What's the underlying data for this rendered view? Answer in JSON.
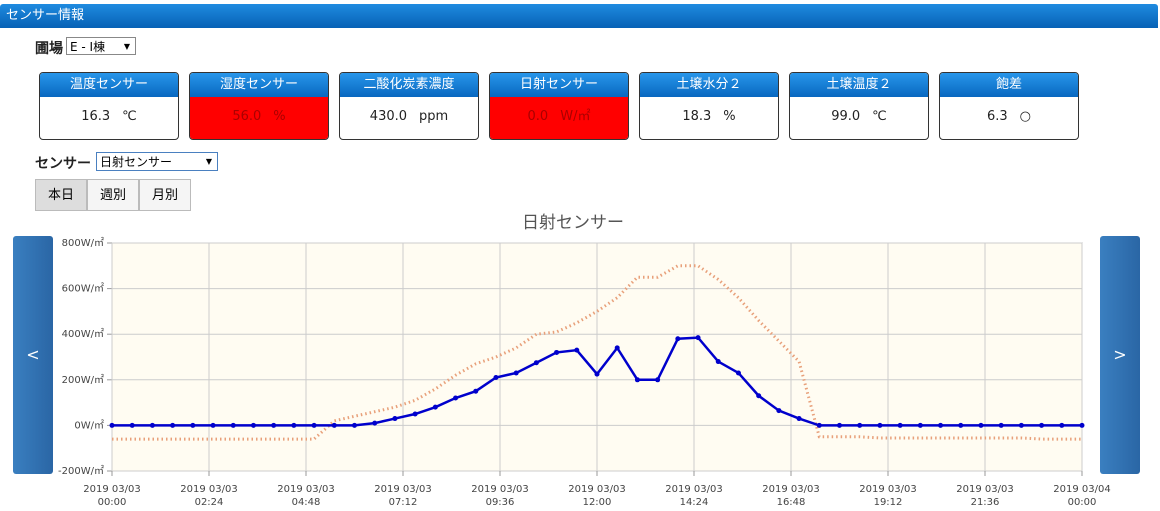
{
  "header": {
    "title": "センサー情報"
  },
  "farm": {
    "label": "圃場",
    "selected": "E - I棟"
  },
  "cards": [
    {
      "name": "温度センサー",
      "value": "16.3",
      "unit": "℃",
      "alert": false
    },
    {
      "name": "湿度センサー",
      "value": "56.0",
      "unit": "%",
      "alert": true
    },
    {
      "name": "二酸化炭素濃度",
      "value": "430.0",
      "unit": "ppm",
      "alert": false
    },
    {
      "name": "日射センサー",
      "value": "0.0",
      "unit": "W/㎡",
      "alert": true
    },
    {
      "name": "土壌水分２",
      "value": "18.3",
      "unit": "%",
      "alert": false
    },
    {
      "name": "土壌温度２",
      "value": "99.0",
      "unit": "℃",
      "alert": false
    },
    {
      "name": "飽差",
      "value": "6.3",
      "unit": "○",
      "alert": false
    }
  ],
  "sensor": {
    "label": "センサー",
    "selected": "日射センサー"
  },
  "range_buttons": [
    "本日",
    "週別",
    "月別"
  ],
  "nav": {
    "prev": "<",
    "next": ">"
  },
  "chart_data": {
    "type": "line",
    "title": "日射センサー",
    "x": [
      0,
      0.5,
      1,
      1.5,
      2,
      2.5,
      3,
      3.5,
      4,
      4.5,
      5,
      5.5,
      6,
      6.5,
      7,
      7.5,
      8,
      8.5,
      9,
      9.5,
      10,
      10.5,
      11,
      11.5,
      12,
      12.5,
      13,
      13.5,
      14,
      14.5,
      15,
      15.5,
      16,
      16.5,
      17,
      17.5,
      18,
      18.5,
      19,
      19.5,
      20,
      20.5,
      21,
      21.5,
      22,
      22.5,
      23,
      23.5,
      24
    ],
    "series": [
      {
        "color": "#e8a07a",
        "values": [
          -60,
          -60,
          -60,
          -60,
          -60,
          -60,
          -60,
          -60,
          -60,
          -60,
          -60,
          20,
          40,
          60,
          80,
          110,
          160,
          220,
          270,
          300,
          340,
          400,
          410,
          450,
          500,
          560,
          650,
          650,
          700,
          700,
          640,
          560,
          460,
          370,
          280,
          -50,
          -50,
          -50,
          -55,
          -55,
          -55,
          -55,
          -55,
          -55,
          -55,
          -55,
          -60,
          -60,
          -60
        ]
      },
      {
        "color": "#0000cc",
        "values": [
          0,
          0,
          0,
          0,
          0,
          0,
          0,
          0,
          0,
          0,
          0,
          0,
          0,
          10,
          30,
          50,
          80,
          120,
          150,
          210,
          230,
          275,
          320,
          330,
          225,
          340,
          200,
          200,
          380,
          385,
          280,
          230,
          130,
          65,
          30,
          0,
          0,
          0,
          0,
          0,
          0,
          0,
          0,
          0,
          0,
          0,
          0,
          0,
          0
        ]
      }
    ],
    "xlim": [
      0,
      24
    ],
    "xticks": [
      {
        "value": 0,
        "label": "2019 03/03\n00:00"
      },
      {
        "value": 2.4,
        "label": "2019 03/03\n02:24"
      },
      {
        "value": 4.8,
        "label": "2019 03/03\n04:48"
      },
      {
        "value": 7.2,
        "label": "2019 03/03\n07:12"
      },
      {
        "value": 9.6,
        "label": "2019 03/03\n09:36"
      },
      {
        "value": 12,
        "label": "2019 03/03\n12:00"
      },
      {
        "value": 14.4,
        "label": "2019 03/03\n14:24"
      },
      {
        "value": 16.8,
        "label": "2019 03/03\n16:48"
      },
      {
        "value": 19.2,
        "label": "2019 03/03\n19:12"
      },
      {
        "value": 21.6,
        "label": "2019 03/03\n21:36"
      },
      {
        "value": 24,
        "label": "2019 03/04\n00:00"
      }
    ],
    "ylim": [
      -200,
      800
    ],
    "yticks": [
      {
        "value": -200,
        "label": "-200W/㎡"
      },
      {
        "value": 0,
        "label": "0W/㎡"
      },
      {
        "value": 200,
        "label": "200W/㎡"
      },
      {
        "value": 400,
        "label": "400W/㎡"
      },
      {
        "value": 600,
        "label": "600W/㎡"
      },
      {
        "value": 800,
        "label": "800W/㎡"
      }
    ],
    "grid": true
  }
}
